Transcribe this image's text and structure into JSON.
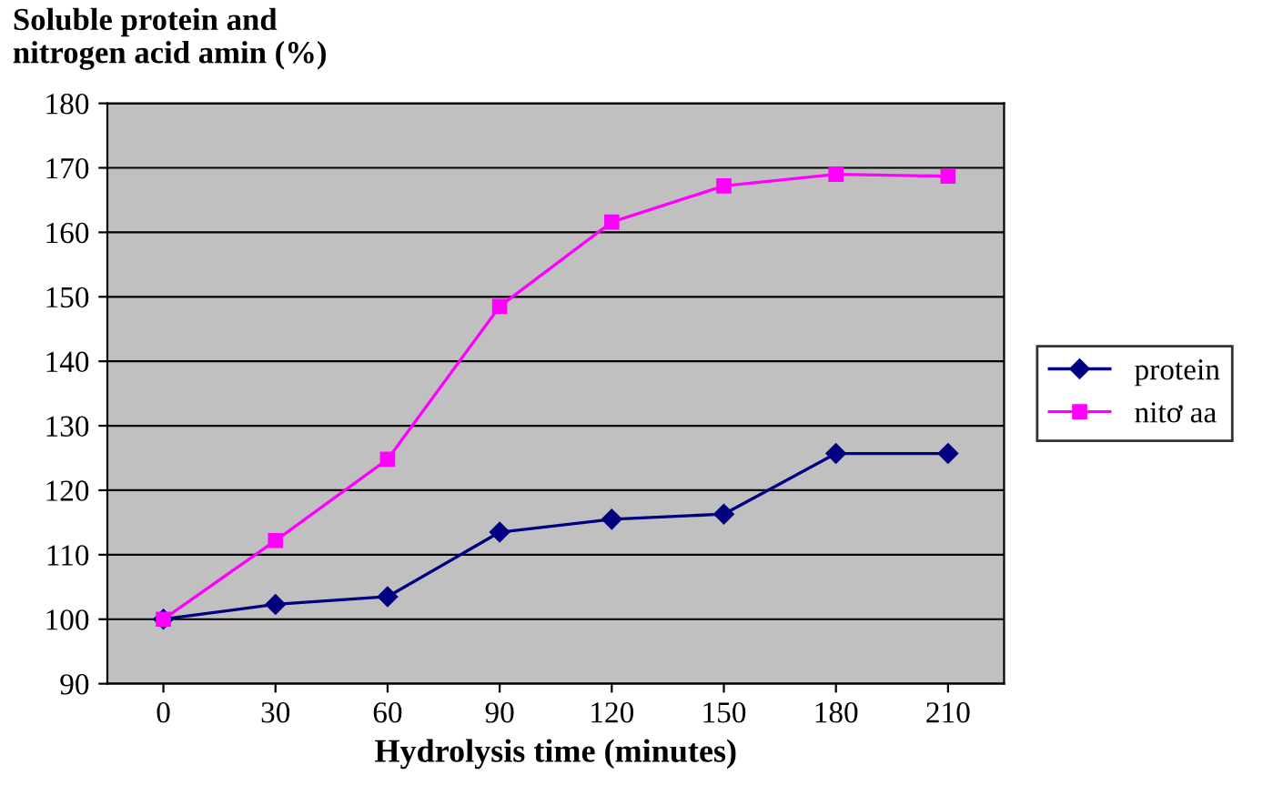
{
  "chart_data": {
    "type": "line",
    "title": "Soluble protein and\nnitrogen acid amin (%)",
    "xlabel": "Hydrolysis time (minutes)",
    "categories": [
      "0",
      "30",
      "60",
      "90",
      "120",
      "150",
      "180",
      "210"
    ],
    "series": [
      {
        "name": "protein",
        "color": "#000080",
        "marker": "diamond",
        "values": [
          100,
          102.3,
          103.5,
          113.5,
          115.5,
          116.3,
          125.7,
          125.7
        ]
      },
      {
        "name": "nitơ aa",
        "color": "#ff00ff",
        "marker": "square",
        "values": [
          100,
          112.2,
          124.8,
          148.5,
          161.6,
          167.2,
          169,
          168.7
        ]
      }
    ],
    "ylim": [
      90,
      180
    ],
    "yticks": [
      90,
      100,
      110,
      120,
      130,
      140,
      150,
      160,
      170,
      180
    ],
    "grid": "y",
    "legend": "right"
  }
}
